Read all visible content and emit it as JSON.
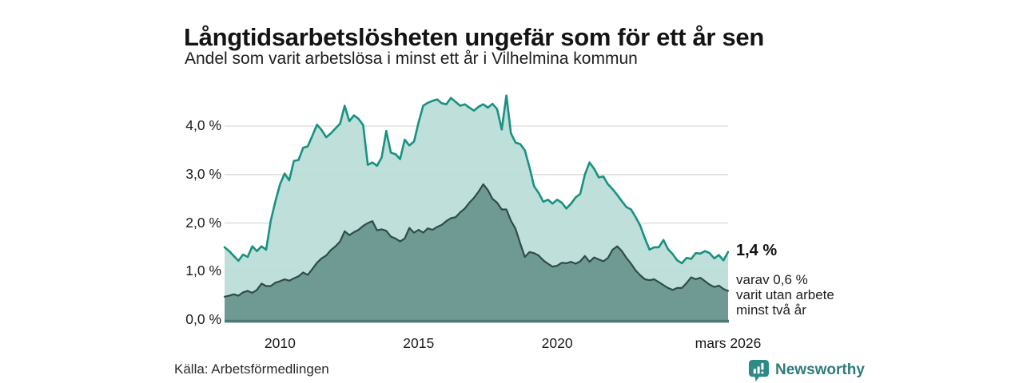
{
  "header": {
    "title": "Långtidsarbetslösheten ungefär som för ett år sen",
    "subtitle": "Andel som varit arbetslösa i minst ett år i Vilhelmina kommun"
  },
  "annotation": {
    "value_label": "1,4 %",
    "detail": "varav 0,6 %\nvarit utan arbete\nminst två år"
  },
  "source": {
    "label": "Källa: Arbetsförmedlingen"
  },
  "logo": {
    "text": "Newsworthy",
    "icon": "bar-chart-badge-icon"
  },
  "colors": {
    "line_light_series": "#18917f",
    "fill_light_series": "#b9ddd7",
    "line_dark_series": "#2e4c48",
    "fill_dark_series": "#6f9a93",
    "gridline": "#d9d9d9",
    "axis_line": "#4d7a74",
    "logo_teal": "#2e8a86"
  },
  "chart_data": {
    "type": "area",
    "title": "Långtidsarbetslösheten ungefär som för ett år sen",
    "subtitle": "Andel som varit arbetslösa i minst ett år i Vilhelmina kommun",
    "unit": "%",
    "grid": true,
    "x_start_year": 2008.0,
    "step_years": 0.166667,
    "x_end_label": "mars 2026",
    "ylim": [
      0,
      4.8
    ],
    "y_ticks": [
      {
        "v": 0,
        "label": "0,0 %"
      },
      {
        "v": 1,
        "label": "1,0 %"
      },
      {
        "v": 2,
        "label": "2,0 %"
      },
      {
        "v": 3,
        "label": "3,0 %"
      },
      {
        "v": 4,
        "label": "4,0 %"
      }
    ],
    "x_ticks": [
      {
        "t": 2010,
        "label": "2010"
      },
      {
        "t": 2015,
        "label": "2015"
      },
      {
        "t": 2020,
        "label": "2020"
      },
      {
        "t": 2026.1667,
        "label": "mars 2026"
      }
    ],
    "series": [
      {
        "name": "Andel som varit arbetslösa minst ett år",
        "end_label": "1,4 %",
        "line_color": "#18917f",
        "fill_color": "#b9ddd7",
        "line_width": 2.6,
        "values_pct": [
          1.5,
          1.42,
          1.32,
          1.22,
          1.35,
          1.3,
          1.52,
          1.42,
          1.52,
          1.45,
          2.05,
          2.45,
          2.8,
          3.02,
          2.88,
          3.28,
          3.3,
          3.55,
          3.58,
          3.8,
          4.03,
          3.92,
          3.77,
          3.85,
          3.95,
          4.05,
          4.42,
          4.1,
          4.22,
          4.15,
          4.02,
          3.2,
          3.25,
          3.18,
          3.35,
          3.9,
          3.45,
          3.42,
          3.32,
          3.72,
          3.6,
          3.68,
          4.08,
          4.42,
          4.48,
          4.52,
          4.55,
          4.47,
          4.45,
          4.58,
          4.5,
          4.42,
          4.45,
          4.38,
          4.32,
          4.4,
          4.45,
          4.38,
          4.46,
          4.35,
          3.93,
          4.63,
          3.85,
          3.66,
          3.63,
          3.5,
          3.15,
          2.76,
          2.62,
          2.44,
          2.48,
          2.4,
          2.48,
          2.42,
          2.3,
          2.4,
          2.53,
          2.6,
          3.0,
          3.25,
          3.12,
          2.94,
          2.96,
          2.8,
          2.7,
          2.58,
          2.45,
          2.33,
          2.28,
          2.12,
          1.94,
          1.68,
          1.45,
          1.5,
          1.5,
          1.65,
          1.46,
          1.36,
          1.23,
          1.17,
          1.28,
          1.26,
          1.38,
          1.37,
          1.42,
          1.38,
          1.27,
          1.34,
          1.23,
          1.4
        ]
      },
      {
        "name": "varav utan arbete minst två år",
        "end_label": "0,6 %",
        "line_color": "#2e4c48",
        "fill_color": "#6f9a93",
        "line_width": 2.2,
        "values_pct": [
          0.48,
          0.5,
          0.53,
          0.5,
          0.57,
          0.6,
          0.56,
          0.62,
          0.75,
          0.7,
          0.7,
          0.77,
          0.8,
          0.84,
          0.81,
          0.86,
          0.9,
          0.98,
          0.93,
          1.05,
          1.18,
          1.27,
          1.33,
          1.44,
          1.52,
          1.62,
          1.83,
          1.75,
          1.81,
          1.86,
          1.94,
          2.0,
          2.04,
          1.85,
          1.87,
          1.84,
          1.72,
          1.68,
          1.62,
          1.68,
          1.9,
          1.8,
          1.86,
          1.8,
          1.89,
          1.86,
          1.92,
          1.96,
          2.04,
          2.1,
          2.12,
          2.22,
          2.3,
          2.42,
          2.52,
          2.65,
          2.8,
          2.68,
          2.5,
          2.42,
          2.28,
          2.28,
          2.05,
          1.88,
          1.58,
          1.3,
          1.4,
          1.38,
          1.33,
          1.23,
          1.16,
          1.1,
          1.12,
          1.18,
          1.17,
          1.2,
          1.16,
          1.21,
          1.32,
          1.2,
          1.29,
          1.25,
          1.21,
          1.28,
          1.45,
          1.52,
          1.42,
          1.28,
          1.16,
          1.02,
          0.92,
          0.84,
          0.82,
          0.84,
          0.78,
          0.72,
          0.66,
          0.62,
          0.66,
          0.66,
          0.76,
          0.88,
          0.84,
          0.87,
          0.8,
          0.73,
          0.68,
          0.71,
          0.64,
          0.6
        ]
      }
    ]
  }
}
